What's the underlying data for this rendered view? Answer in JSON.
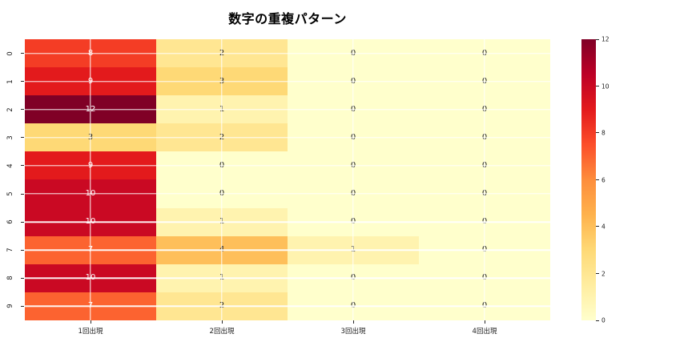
{
  "title": "数字の重複パターン",
  "chart_data": {
    "type": "heatmap",
    "title": "数字の重複パターン",
    "x_categories": [
      "1回出現",
      "2回出現",
      "3回出現",
      "4回出現"
    ],
    "y_categories": [
      "0",
      "1",
      "2",
      "3",
      "4",
      "5",
      "6",
      "7",
      "8",
      "9"
    ],
    "values": [
      [
        8,
        2,
        0,
        0
      ],
      [
        9,
        3,
        0,
        0
      ],
      [
        12,
        1,
        0,
        0
      ],
      [
        3,
        2,
        0,
        0
      ],
      [
        9,
        0,
        0,
        0
      ],
      [
        10,
        0,
        0,
        0
      ],
      [
        10,
        1,
        0,
        0
      ],
      [
        7,
        4,
        1,
        0
      ],
      [
        10,
        1,
        0,
        0
      ],
      [
        7,
        2,
        0,
        0
      ]
    ],
    "vmin": 0,
    "vmax": 12,
    "colormap": "YlOrRd",
    "annotated": true,
    "grid": true,
    "colorbar_ticks": [
      0,
      2,
      4,
      6,
      8,
      10,
      12
    ],
    "colorbar_position": "right"
  },
  "colors": {
    "background": "#ffffff",
    "title_text": "#000000",
    "tick_text": "#1a1a1a",
    "grid_line": "rgba(255,255,255,0.95)",
    "annot_dark": "#1a1a1a",
    "annot_light": "#ffffff",
    "value_colors": {
      "0": "#ffffcc",
      "1": "#fff3af",
      "2": "#ffe692",
      "3": "#fed976",
      "4": "#febf5a",
      "7": "#fc6330",
      "8": "#f43d25",
      "9": "#e31a1c",
      "10": "#ca0923",
      "12": "#800026"
    },
    "colorbar_gradient_bottom_to_top": [
      "#ffffcc",
      "#ffeda0",
      "#fed976",
      "#feb24c",
      "#fd8d3c",
      "#fc4e2a",
      "#e31a1c",
      "#bd0026",
      "#800026"
    ]
  }
}
